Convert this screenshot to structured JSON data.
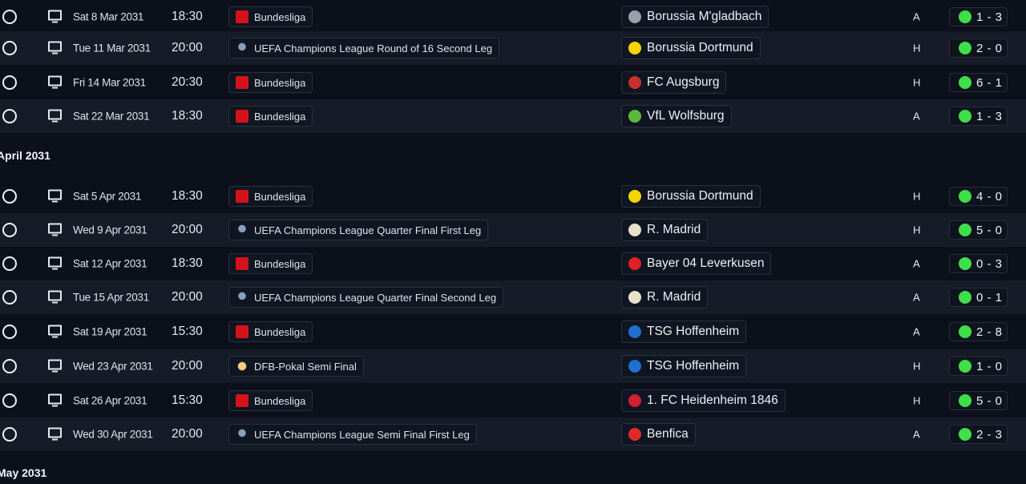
{
  "months": [
    "April 2031",
    "May 2031"
  ],
  "win_color": "#3ee04a",
  "fixtures": [
    {
      "date": "Sat 8 Mar 2031",
      "time": "18:30",
      "competition": "Bundesliga",
      "comp_icon": "bundesliga-logo",
      "opponent": "Borussia M'gladbach",
      "team_color": "#9aa0a8",
      "venue": "A",
      "score": "1 - 3"
    },
    {
      "date": "Tue 11 Mar 2031",
      "time": "20:00",
      "competition": "UEFA Champions League Round of 16  Second Leg",
      "comp_icon": "champions-league-trophy",
      "opponent": "Borussia Dortmund",
      "team_color": "#f5d400",
      "venue": "H",
      "score": "2 - 0"
    },
    {
      "date": "Fri 14 Mar 2031",
      "time": "20:30",
      "competition": "Bundesliga",
      "comp_icon": "bundesliga-logo",
      "opponent": "FC Augsburg",
      "team_color": "#c8302c",
      "venue": "H",
      "score": "6 - 1"
    },
    {
      "date": "Sat 22 Mar 2031",
      "time": "18:30",
      "competition": "Bundesliga",
      "comp_icon": "bundesliga-logo",
      "opponent": "VfL Wolfsburg",
      "team_color": "#5cb83a",
      "venue": "A",
      "score": "1 - 3"
    },
    {
      "date": "Sat 5 Apr 2031",
      "time": "18:30",
      "competition": "Bundesliga",
      "comp_icon": "bundesliga-logo",
      "opponent": "Borussia Dortmund",
      "team_color": "#f5d400",
      "venue": "H",
      "score": "4 - 0"
    },
    {
      "date": "Wed 9 Apr 2031",
      "time": "20:00",
      "competition": "UEFA Champions League Quarter Final First Leg",
      "comp_icon": "champions-league-trophy",
      "opponent": "R. Madrid",
      "team_color": "#e8e0c8",
      "venue": "H",
      "score": "5 - 0"
    },
    {
      "date": "Sat 12 Apr 2031",
      "time": "18:30",
      "competition": "Bundesliga",
      "comp_icon": "bundesliga-logo",
      "opponent": "Bayer 04 Leverkusen",
      "team_color": "#e02020",
      "venue": "A",
      "score": "0 - 3"
    },
    {
      "date": "Tue 15 Apr 2031",
      "time": "20:00",
      "competition": "UEFA Champions League Quarter Final Second Leg",
      "comp_icon": "champions-league-trophy",
      "opponent": "R. Madrid",
      "team_color": "#e8e0c8",
      "venue": "A",
      "score": "0 - 1"
    },
    {
      "date": "Sat 19 Apr 2031",
      "time": "15:30",
      "competition": "Bundesliga",
      "comp_icon": "bundesliga-logo",
      "opponent": "TSG Hoffenheim",
      "team_color": "#1f6fd0",
      "venue": "A",
      "score": "2 - 8"
    },
    {
      "date": "Wed 23 Apr 2031",
      "time": "20:00",
      "competition": "DFB-Pokal Semi Final",
      "comp_icon": "dfb-pokal-trophy",
      "opponent": "TSG Hoffenheim",
      "team_color": "#1f6fd0",
      "venue": "H",
      "score": "1 - 0"
    },
    {
      "date": "Sat 26 Apr 2031",
      "time": "15:30",
      "competition": "Bundesliga",
      "comp_icon": "bundesliga-logo",
      "opponent": "1. FC Heidenheim 1846",
      "team_color": "#d02030",
      "venue": "H",
      "score": "5 - 0"
    },
    {
      "date": "Wed 30 Apr 2031",
      "time": "20:00",
      "competition": "UEFA Champions League Semi Final First Leg",
      "comp_icon": "champions-league-trophy",
      "opponent": "Benfica",
      "team_color": "#e02a2a",
      "venue": "A",
      "score": "2 - 3"
    }
  ]
}
